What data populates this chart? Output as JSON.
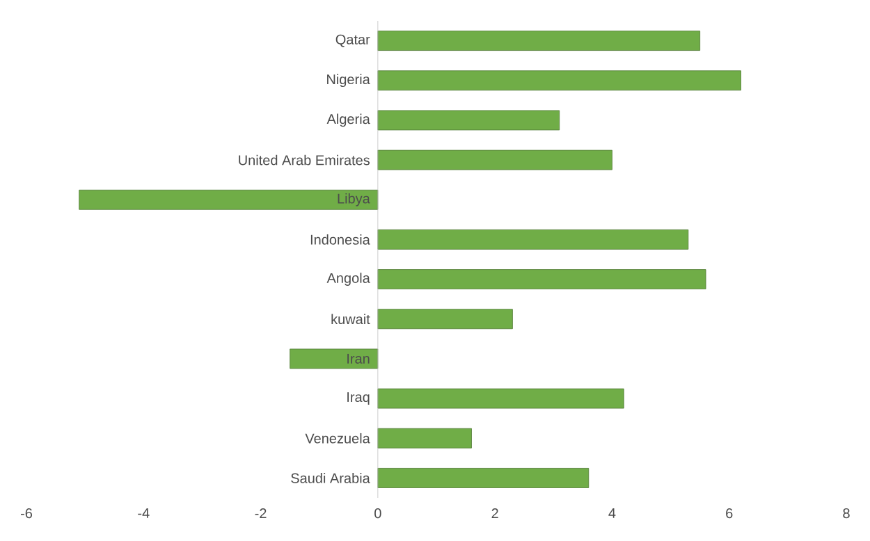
{
  "chart_data": {
    "type": "bar",
    "orientation": "horizontal",
    "categories": [
      "Qatar",
      "Nigeria",
      "Algeria",
      "United Arab Emirates",
      "Libya",
      "Indonesia",
      "Angola",
      "kuwait",
      "Iran",
      "Iraq",
      "Venezuela",
      "Saudi Arabia"
    ],
    "values": [
      5.5,
      6.2,
      3.1,
      4.0,
      -5.1,
      5.3,
      5.6,
      2.3,
      -1.5,
      4.2,
      1.6,
      3.6
    ],
    "color": "#70ad47",
    "xlim": [
      -6,
      8
    ],
    "xticks": [
      -6,
      -4,
      -2,
      0,
      2,
      4,
      6,
      8
    ],
    "grid": false
  }
}
